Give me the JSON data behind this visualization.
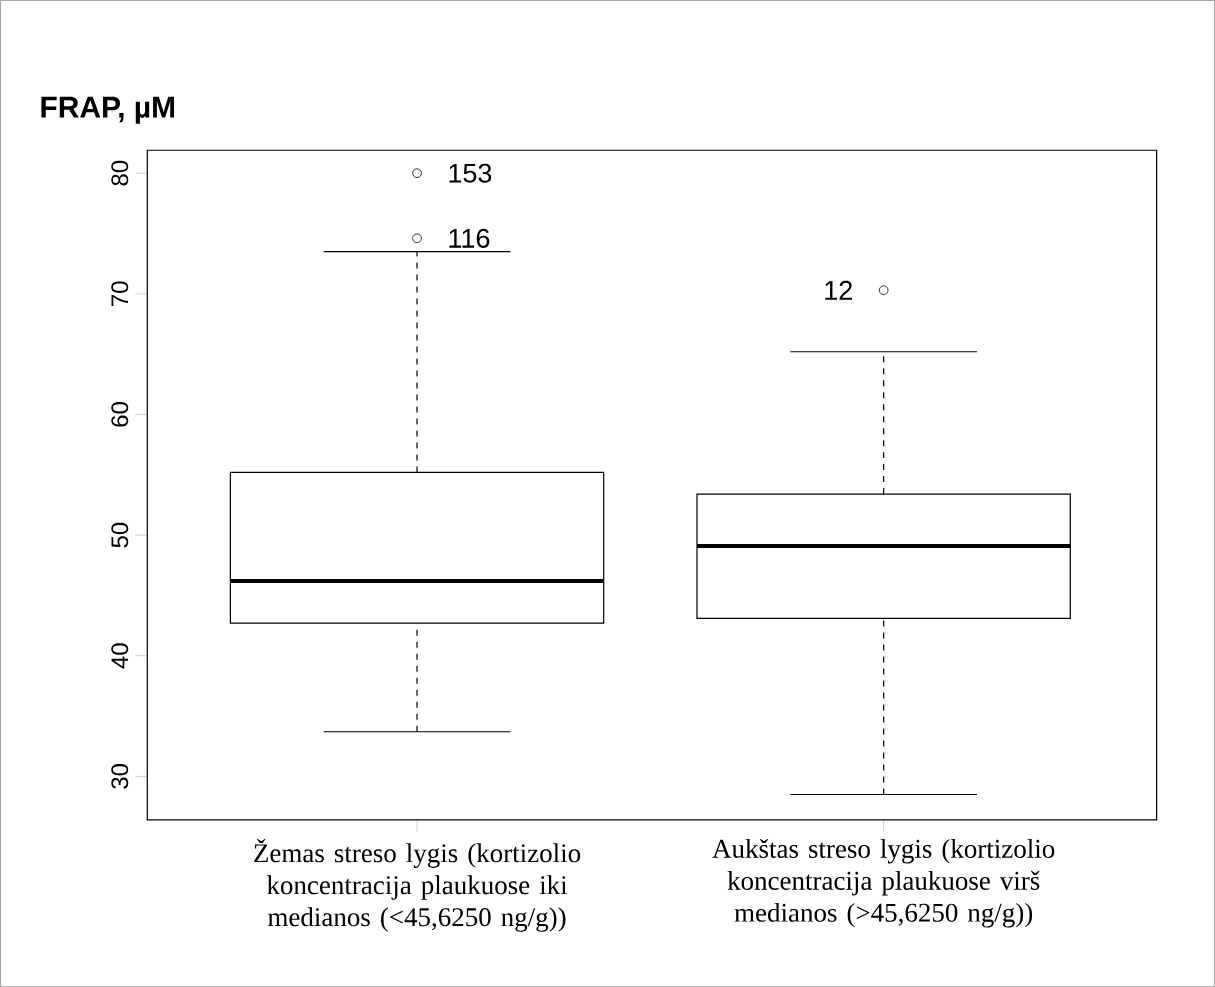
{
  "chart_data": {
    "type": "box",
    "title": "FRAP, µM",
    "categories": [
      "Žemas streso lygis (kortizolio koncentracija plaukuose iki medianos (<45,6250 ng/g))",
      "Aukštas streso lygis (kortizolio koncentracija plaukuose virš medianos (>45,6250 ng/g))"
    ],
    "boxes": [
      {
        "low": 33.7,
        "q1": 42.7,
        "median": 46.2,
        "q3": 55.2,
        "high": 73.5,
        "outliers": [
          80,
          74.6
        ]
      },
      {
        "low": 28.5,
        "q1": 43.1,
        "median": 49.1,
        "q3": 53.4,
        "high": 65.2,
        "outliers": [
          70.3
        ]
      }
    ],
    "ylim": [
      26.4,
      81.9
    ],
    "yticks": [
      30,
      40,
      50,
      60,
      70,
      80
    ],
    "annotations": [
      "153",
      "116",
      "12"
    ]
  }
}
